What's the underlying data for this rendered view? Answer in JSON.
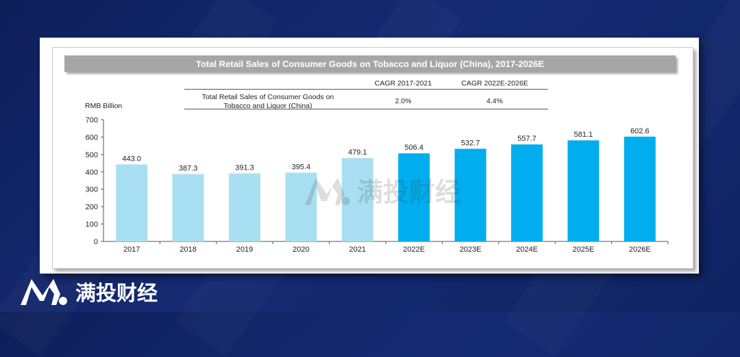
{
  "chart_data": {
    "type": "bar",
    "title": "Total Retail Sales of Consumer Goods on Tobacco and Liquor (China), 2017-2026E",
    "ylabel": "RMB Billion",
    "ylim": [
      0,
      700
    ],
    "yticks": [
      0,
      100,
      200,
      300,
      400,
      500,
      600,
      700
    ],
    "categories": [
      "2017",
      "2018",
      "2019",
      "2020",
      "2021",
      "2022E",
      "2023E",
      "2024E",
      "2025E",
      "2026E"
    ],
    "values": [
      443.0,
      387.3,
      391.3,
      395.4,
      479.1,
      506.4,
      532.7,
      557.7,
      581.1,
      602.6
    ],
    "value_labels": [
      "443.0",
      "387.3",
      "391.3",
      "395.4",
      "479.1",
      "506.4",
      "532.7",
      "557.7",
      "581.1",
      "602.6"
    ],
    "colors": {
      "historical": "#a9dff2",
      "forecast": "#00aeef"
    },
    "grid": false
  },
  "cagr": {
    "row_label_line1": "Total Retail Sales of Consumer Goods on",
    "row_label_line2": "Tobacco and Liquor (China)",
    "col1_header": "CAGR 2017-2021",
    "col1_value": "2.0%",
    "col2_header": "CAGR 2022E-2026E",
    "col2_value": "4.4%"
  },
  "brand": {
    "name": "满投财经",
    "watermark_text": "满投财经"
  },
  "theme": {
    "title_bar_color": "#a6a6a6",
    "logo_color": "#ffffff"
  }
}
